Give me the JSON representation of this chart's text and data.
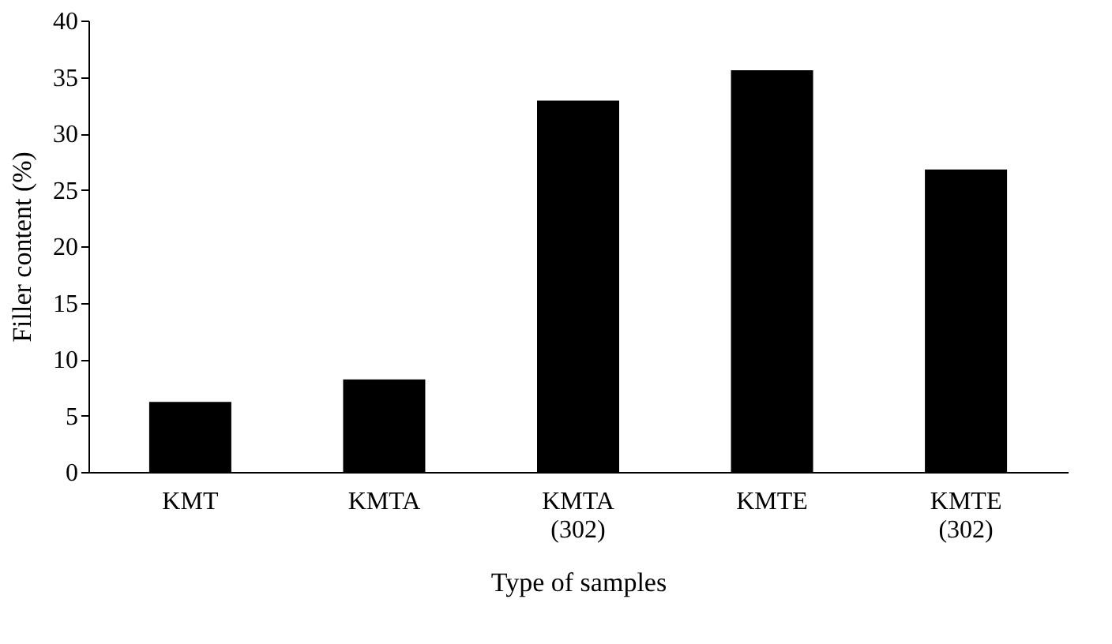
{
  "chart_data": {
    "type": "bar",
    "xlabel": "Type of samples",
    "ylabel": "Filler content (%)",
    "categories": [
      "KMT",
      "KMTA",
      "KMTA (302)",
      "KMTE",
      "KMTE (302)"
    ],
    "values": [
      6.2,
      8.2,
      32.9,
      35.6,
      26.8
    ],
    "color": "#000000",
    "ylim": [
      0,
      40
    ],
    "yticks": [
      0,
      5,
      10,
      15,
      20,
      25,
      30,
      35,
      40
    ],
    "grid": false
  }
}
